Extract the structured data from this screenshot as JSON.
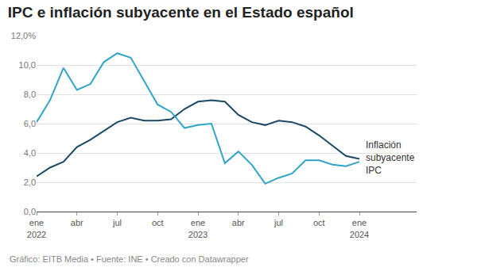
{
  "chart_data": {
    "type": "line",
    "title": "IPC e inflación subyacente en el Estado español",
    "source": "Gráfico: EITB Media • Fuente: INE • Creado con Datawrapper",
    "categories": [
      "ene 2022",
      null,
      null,
      "abr",
      null,
      null,
      "jul",
      null,
      null,
      "oct",
      null,
      null,
      "ene 2023",
      null,
      null,
      "abr",
      null,
      null,
      "jul",
      null,
      null,
      "oct",
      null,
      null,
      "ene 2024"
    ],
    "series": [
      {
        "name": "Inflación subyacente",
        "color": "#1b4965",
        "values": [
          2.4,
          3.0,
          3.4,
          4.4,
          4.9,
          5.5,
          6.1,
          6.4,
          6.2,
          6.2,
          6.3,
          7.0,
          7.5,
          7.6,
          7.5,
          6.6,
          6.1,
          5.9,
          6.2,
          6.1,
          5.8,
          5.2,
          4.5,
          3.8,
          3.6
        ]
      },
      {
        "name": "IPC",
        "color": "#2fa4c6",
        "values": [
          6.1,
          7.6,
          9.8,
          8.3,
          8.7,
          10.2,
          10.8,
          10.5,
          8.9,
          7.3,
          6.8,
          5.7,
          5.9,
          6.0,
          3.3,
          4.1,
          3.2,
          1.9,
          2.3,
          2.6,
          3.5,
          3.5,
          3.2,
          3.1,
          3.4
        ]
      }
    ],
    "ylim": [
      0,
      12
    ],
    "yticks": [
      {
        "value": 0,
        "label": "0,0"
      },
      {
        "value": 2,
        "label": "2,0"
      },
      {
        "value": 4,
        "label": "4,0"
      },
      {
        "value": 6,
        "label": "6,0"
      },
      {
        "value": 8,
        "label": "8,0"
      },
      {
        "value": 10,
        "label": "10,0"
      },
      {
        "value": 12,
        "label": "12,0%"
      }
    ],
    "grid": true
  }
}
